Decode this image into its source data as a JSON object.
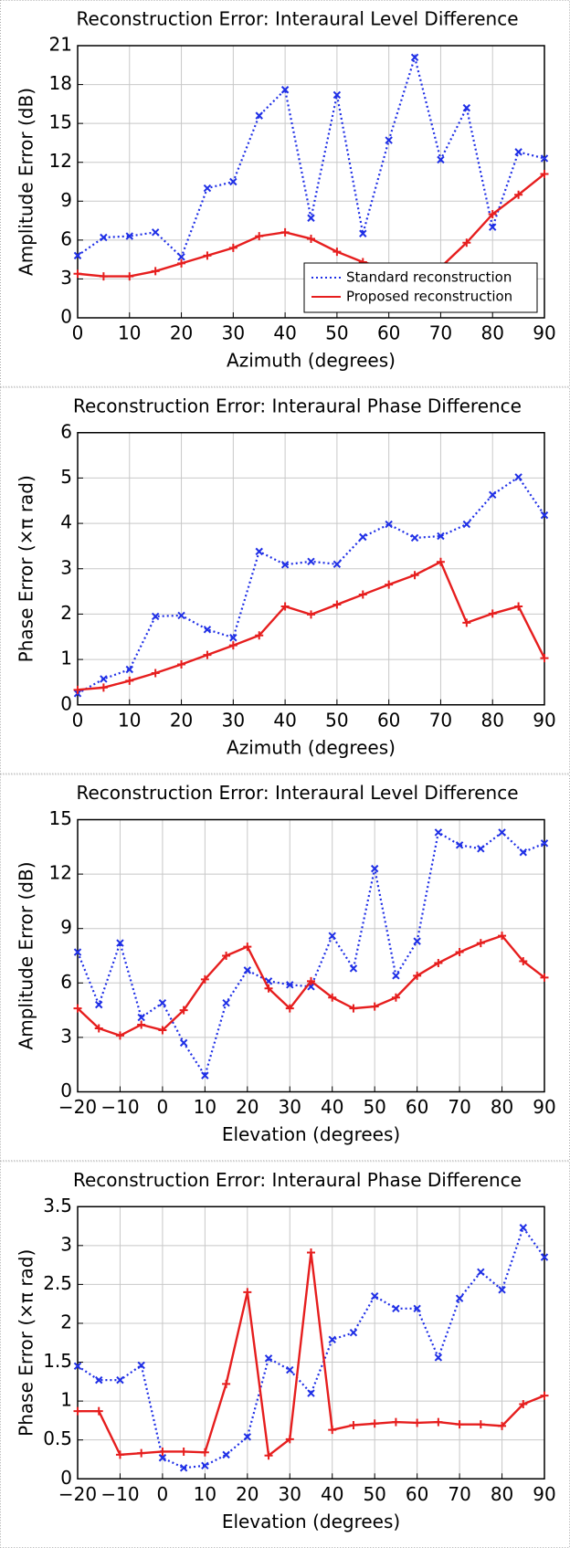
{
  "chart_data": [
    {
      "type": "line",
      "title": "Reconstruction Error: Interaural Level Difference",
      "x_label": "Azimuth (degrees)",
      "y_label": "Amplitude Error (dB)",
      "x": [
        0,
        5,
        10,
        15,
        20,
        25,
        30,
        35,
        40,
        45,
        50,
        55,
        60,
        65,
        70,
        75,
        80,
        85,
        90
      ],
      "series": [
        {
          "name": "Standard reconstruction",
          "color": "#1f2fe6",
          "values": [
            4.8,
            6.2,
            6.3,
            6.6,
            4.7,
            10.0,
            10.5,
            15.6,
            17.6,
            7.7,
            17.2,
            6.5,
            13.7,
            20.1,
            12.2,
            16.2,
            7.0,
            12.8,
            12.3
          ]
        },
        {
          "name": "Proposed reconstruction",
          "color": "#e61e1e",
          "values": [
            3.4,
            3.2,
            3.2,
            3.6,
            4.2,
            4.8,
            5.4,
            6.3,
            6.6,
            6.1,
            5.1,
            4.3,
            3.8,
            3.7,
            3.9,
            5.8,
            8.0,
            9.5,
            11.1
          ]
        }
      ],
      "xlim": [
        0,
        90
      ],
      "xticks": [
        0,
        10,
        20,
        30,
        40,
        50,
        60,
        70,
        80,
        90
      ],
      "ylim": [
        0,
        21
      ],
      "yticks": [
        0,
        3,
        6,
        9,
        12,
        15,
        18,
        21
      ],
      "grid": true,
      "legend": "lower right"
    },
    {
      "type": "line",
      "title": "Reconstruction Error: Interaural Phase Difference",
      "x_label": "Azimuth (degrees)",
      "y_label": "Phase Error (×π rad)",
      "x": [
        0,
        5,
        10,
        15,
        20,
        25,
        30,
        35,
        40,
        45,
        50,
        55,
        60,
        65,
        70,
        75,
        80,
        85,
        90
      ],
      "series": [
        {
          "color": "#1f2fe6",
          "values": [
            0.25,
            0.57,
            0.78,
            1.95,
            1.97,
            1.66,
            1.48,
            3.38,
            3.09,
            3.16,
            3.1,
            3.7,
            3.98,
            3.68,
            3.72,
            3.98,
            4.63,
            5.02,
            4.18
          ]
        },
        {
          "color": "#e61e1e",
          "values": [
            0.33,
            0.38,
            0.53,
            0.7,
            0.89,
            1.1,
            1.31,
            1.53,
            2.17,
            1.99,
            2.21,
            2.43,
            2.65,
            2.86,
            3.15,
            1.81,
            2.01,
            2.17,
            1.03
          ]
        }
      ],
      "xlim": [
        0,
        90
      ],
      "xticks": [
        0,
        10,
        20,
        30,
        40,
        50,
        60,
        70,
        80,
        90
      ],
      "ylim": [
        0,
        6
      ],
      "yticks": [
        0,
        1,
        2,
        3,
        4,
        5,
        6
      ],
      "grid": true
    },
    {
      "type": "line",
      "title": "Reconstruction Error: Interaural Level Difference",
      "x_label": "Elevation (degrees)",
      "y_label": "Amplitude Error (dB)",
      "x": [
        -20,
        -15,
        -10,
        -5,
        0,
        5,
        10,
        15,
        20,
        25,
        30,
        35,
        40,
        45,
        50,
        55,
        60,
        65,
        70,
        75,
        80,
        85,
        90
      ],
      "series": [
        {
          "color": "#1f2fe6",
          "values": [
            7.7,
            4.8,
            8.2,
            4.1,
            4.9,
            2.7,
            0.9,
            4.9,
            6.7,
            6.1,
            5.9,
            5.8,
            8.6,
            6.8,
            12.3,
            6.4,
            8.3,
            14.3,
            13.6,
            13.4,
            14.3,
            13.2,
            13.7
          ]
        },
        {
          "color": "#e61e1e",
          "values": [
            4.6,
            3.5,
            3.1,
            3.7,
            3.4,
            4.5,
            6.2,
            7.5,
            8.0,
            5.7,
            4.6,
            6.1,
            5.2,
            4.6,
            4.7,
            5.2,
            6.4,
            7.1,
            7.7,
            8.2,
            8.6,
            7.2,
            6.3
          ]
        }
      ],
      "xlim": [
        -20,
        90
      ],
      "xticks": [
        {
          "value": -20,
          "label": "−20"
        },
        {
          "value": -10,
          "label": "−10"
        },
        0,
        10,
        20,
        30,
        40,
        50,
        60,
        70,
        80,
        90
      ],
      "ylim": [
        0,
        15
      ],
      "yticks": [
        0,
        3,
        6,
        9,
        12,
        15
      ],
      "grid": true
    },
    {
      "type": "line",
      "title": "Reconstruction Error: Interaural Phase Difference",
      "x_label": "Elevation (degrees)",
      "y_label": "Phase Error (×π rad)",
      "x": [
        -20,
        -15,
        -10,
        -5,
        0,
        5,
        10,
        15,
        20,
        25,
        30,
        35,
        40,
        45,
        50,
        55,
        60,
        65,
        70,
        75,
        80,
        85,
        90
      ],
      "series": [
        {
          "color": "#1f2fe6",
          "values": [
            1.45,
            1.27,
            1.27,
            1.46,
            0.27,
            0.14,
            0.17,
            0.31,
            0.54,
            1.55,
            1.4,
            1.1,
            1.79,
            1.88,
            2.35,
            2.19,
            2.19,
            1.56,
            2.32,
            2.66,
            2.43,
            3.23,
            2.85
          ]
        },
        {
          "color": "#e61e1e",
          "values": [
            0.87,
            0.87,
            0.31,
            0.33,
            0.35,
            0.35,
            0.34,
            1.22,
            2.4,
            0.3,
            0.51,
            2.91,
            0.63,
            0.69,
            0.71,
            0.73,
            0.72,
            0.73,
            0.7,
            0.7,
            0.68,
            0.96,
            1.07
          ]
        }
      ],
      "xlim": [
        -20,
        90
      ],
      "xticks": [
        {
          "value": -20,
          "label": "−20"
        },
        {
          "value": -10,
          "label": "−10"
        },
        0,
        10,
        20,
        30,
        40,
        50,
        60,
        70,
        80,
        90
      ],
      "ylim": [
        0,
        3.5
      ],
      "yticks": [
        0,
        0.5,
        1,
        1.5,
        2,
        2.5,
        3,
        3.5
      ],
      "grid": true
    }
  ]
}
